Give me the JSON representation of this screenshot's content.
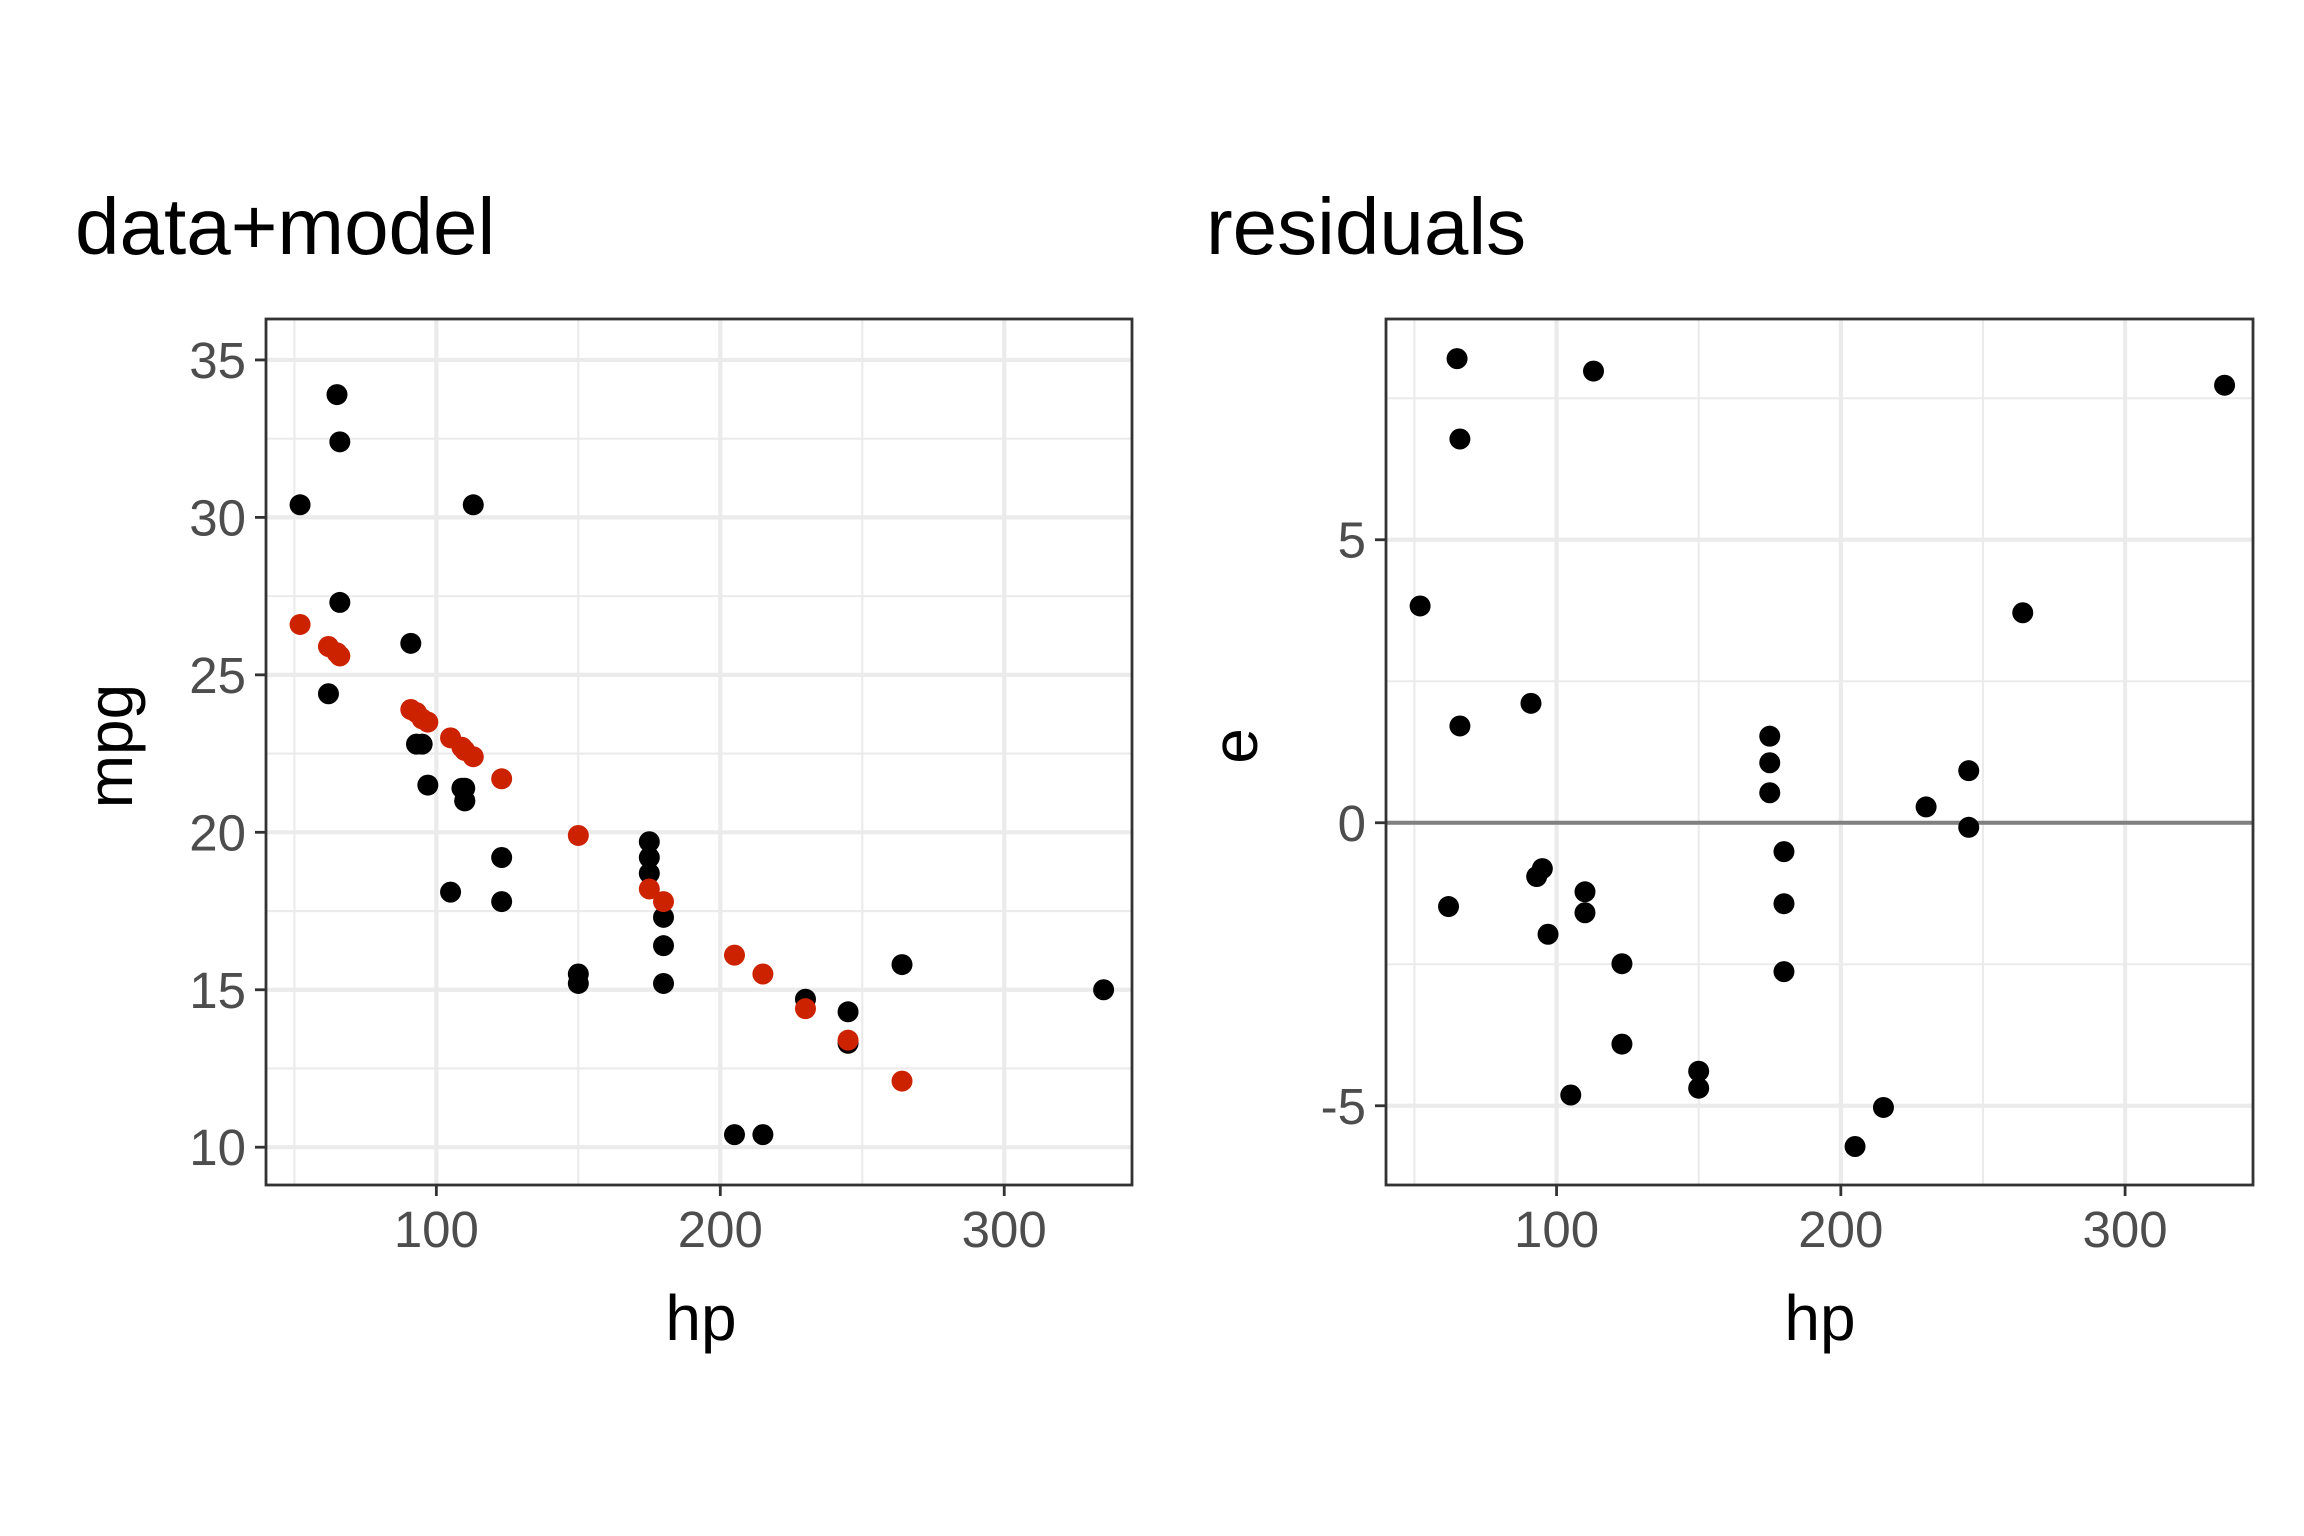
{
  "chart_data": [
    {
      "type": "scatter",
      "title": "data+model",
      "xlabel": "hp",
      "ylabel": "mpg",
      "xlim": [
        40,
        345
      ],
      "ylim": [
        8.8,
        36.3
      ],
      "x_ticks": [
        100,
        200,
        300
      ],
      "x_tick_labels": [
        "100",
        "200",
        "300"
      ],
      "y_ticks": [
        10,
        15,
        20,
        25,
        30,
        35
      ],
      "y_tick_labels": [
        "10",
        "15",
        "20",
        "25",
        "30",
        "35"
      ],
      "grid": true,
      "legend": "none",
      "series": [
        {
          "color": "#000000",
          "points": [
            [
              110,
              21.0
            ],
            [
              110,
              21.0
            ],
            [
              93,
              22.8
            ],
            [
              110,
              21.4
            ],
            [
              175,
              18.7
            ],
            [
              105,
              18.1
            ],
            [
              245,
              14.3
            ],
            [
              62,
              24.4
            ],
            [
              95,
              22.8
            ],
            [
              123,
              19.2
            ],
            [
              123,
              17.8
            ],
            [
              180,
              16.4
            ],
            [
              180,
              17.3
            ],
            [
              180,
              15.2
            ],
            [
              205,
              10.4
            ],
            [
              215,
              10.4
            ],
            [
              230,
              14.7
            ],
            [
              66,
              32.4
            ],
            [
              52,
              30.4
            ],
            [
              65,
              33.9
            ],
            [
              97,
              21.5
            ],
            [
              150,
              15.5
            ],
            [
              150,
              15.2
            ],
            [
              245,
              13.3
            ],
            [
              175,
              19.2
            ],
            [
              66,
              27.3
            ],
            [
              91,
              26.0
            ],
            [
              113,
              30.4
            ],
            [
              264,
              15.8
            ],
            [
              175,
              19.7
            ],
            [
              335,
              15.0
            ],
            [
              109,
              21.4
            ]
          ]
        },
        {
          "color": "#cc2200",
          "points": [
            [
              52,
              26.6
            ],
            [
              62,
              25.9
            ],
            [
              65,
              25.7
            ],
            [
              66,
              25.6
            ],
            [
              91,
              23.9
            ],
            [
              93,
              23.8
            ],
            [
              95,
              23.6
            ],
            [
              97,
              23.5
            ],
            [
              105,
              23.0
            ],
            [
              109,
              22.7
            ],
            [
              110,
              22.6
            ],
            [
              113,
              22.4
            ],
            [
              123,
              21.7
            ],
            [
              150,
              19.9
            ],
            [
              175,
              18.2
            ],
            [
              180,
              17.8
            ],
            [
              205,
              16.1
            ],
            [
              215,
              15.5
            ],
            [
              230,
              14.4
            ],
            [
              245,
              13.4
            ],
            [
              264,
              12.1
            ]
          ]
        }
      ]
    },
    {
      "type": "scatter",
      "title": "residuals",
      "xlabel": "hp",
      "ylabel": "e",
      "xlim": [
        40,
        345
      ],
      "ylim": [
        -6.4,
        8.9
      ],
      "x_ticks": [
        100,
        200,
        300
      ],
      "x_tick_labels": [
        "100",
        "200",
        "300"
      ],
      "y_ticks": [
        -5,
        0,
        5
      ],
      "y_tick_labels": [
        "-5",
        "0",
        "5"
      ],
      "grid": true,
      "legend": "none",
      "reference_line": {
        "y": 0,
        "color": "#808080"
      },
      "series": [
        {
          "color": "#000000",
          "points": [
            [
              65,
              8.2
            ],
            [
              113,
              7.98
            ],
            [
              335,
              7.73
            ],
            [
              66,
              6.78
            ],
            [
              52,
              3.83
            ],
            [
              264,
              3.71
            ],
            [
              91,
              2.11
            ],
            [
              66,
              1.71
            ],
            [
              175,
              1.53
            ],
            [
              175,
              1.06
            ],
            [
              245,
              0.92
            ],
            [
              175,
              0.53
            ],
            [
              230,
              0.28
            ],
            [
              245,
              -0.08
            ],
            [
              180,
              -0.51
            ],
            [
              95,
              -0.81
            ],
            [
              93,
              -0.95
            ],
            [
              110,
              -1.22
            ],
            [
              180,
              -1.43
            ],
            [
              62,
              -1.48
            ],
            [
              110,
              -1.59
            ],
            [
              97,
              -1.97
            ],
            [
              123,
              -2.49
            ],
            [
              180,
              -2.63
            ],
            [
              123,
              -3.91
            ],
            [
              150,
              -4.39
            ],
            [
              150,
              -4.69
            ],
            [
              105,
              -4.81
            ],
            [
              215,
              -5.03
            ],
            [
              205,
              -5.72
            ]
          ]
        }
      ]
    }
  ]
}
